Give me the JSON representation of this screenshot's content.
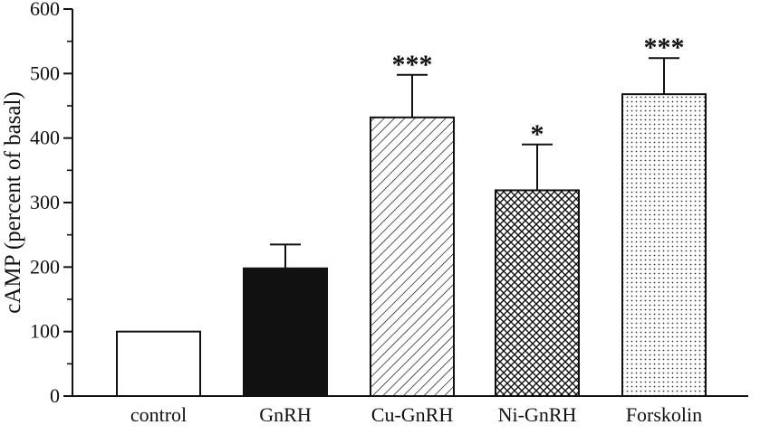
{
  "chart_data": {
    "type": "bar",
    "title": "",
    "xlabel": "",
    "ylabel": "cAMP (percent of basal)",
    "ylim": [
      0,
      600
    ],
    "yticks": [
      0,
      100,
      200,
      300,
      400,
      500,
      600
    ],
    "grid": false,
    "categories": [
      "control",
      "GnRH",
      "Cu-GnRH",
      "Ni-GnRH",
      "Forskolin"
    ],
    "values": [
      100,
      198,
      432,
      319,
      468
    ],
    "errors": [
      0,
      37,
      66,
      71,
      56
    ],
    "significance": [
      "",
      "",
      "***",
      "*",
      "***"
    ],
    "fills": [
      "none",
      "solid-black",
      "diagonal-hatch",
      "cross-hatch",
      "dots"
    ],
    "colors": {
      "ink": "#111111",
      "background": "#ffffff"
    }
  }
}
